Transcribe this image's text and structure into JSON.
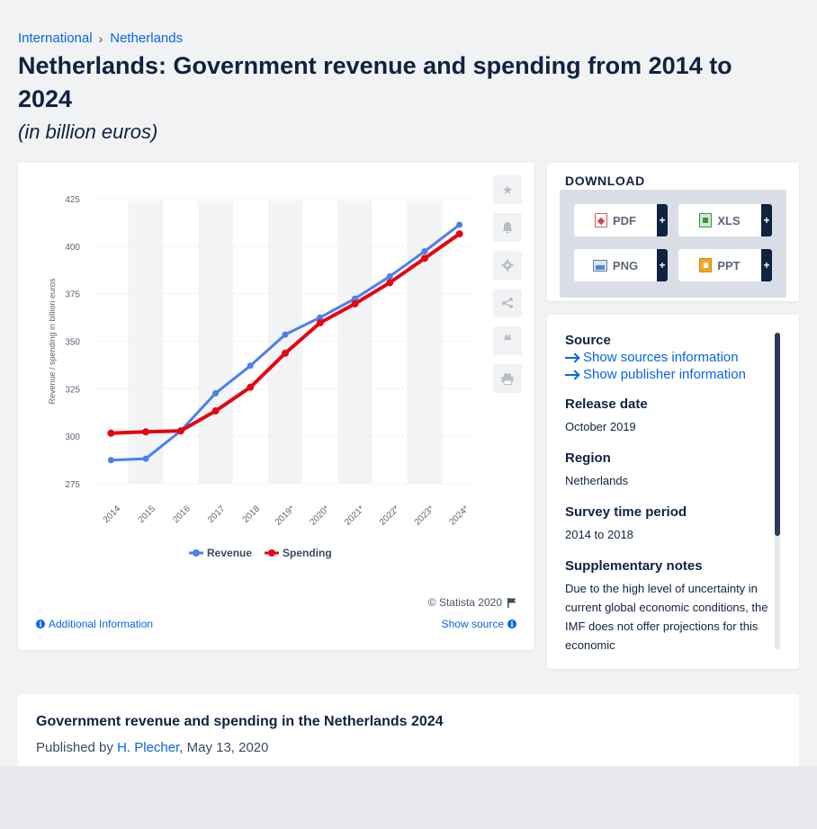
{
  "breadcrumb": {
    "items": [
      "International",
      "Netherlands"
    ]
  },
  "title": "Netherlands: Government revenue and spending from 2014 to 2024",
  "subtitle": "(in billion euros)",
  "download": {
    "heading": "DOWNLOAD",
    "buttons": [
      {
        "label": "PDF",
        "icon": "pdf-icon"
      },
      {
        "label": "XLS",
        "icon": "xls-icon"
      },
      {
        "label": "PNG",
        "icon": "png-icon"
      },
      {
        "label": "PPT",
        "icon": "ppt-icon"
      }
    ],
    "plus": "+"
  },
  "tools": [
    "star-icon",
    "bell-icon",
    "gear-icon",
    "share-icon",
    "quote-icon",
    "print-icon"
  ],
  "footer": {
    "credit": "© Statista 2020",
    "additional_info": "Additional Information",
    "show_source": "Show source"
  },
  "info": {
    "source_label": "Source",
    "show_sources": "Show sources information",
    "show_publisher": "Show publisher information",
    "release_label": "Release date",
    "release_value": "October 2019",
    "region_label": "Region",
    "region_value": "Netherlands",
    "period_label": "Survey time period",
    "period_value": "2014 to 2018",
    "notes_label": "Supplementary notes",
    "notes_value": "Due to the high level of uncertainty in current global economic conditions, the IMF does not offer projections for this economic"
  },
  "article": {
    "title": "Government revenue and spending in the Netherlands 2024",
    "published_prefix": "Published by ",
    "author": "H. Plecher",
    "date": ", May 13, 2020"
  },
  "colors": {
    "revenue": "#4a7ff2",
    "spending": "#e30613",
    "accent": "#0666e5"
  },
  "chart_data": {
    "type": "line",
    "categories": [
      "2014",
      "2015",
      "2016",
      "2017",
      "2018",
      "2019*",
      "2020*",
      "2021*",
      "2022*",
      "2023*",
      "2024*"
    ],
    "series": [
      {
        "name": "Revenue",
        "values": [
          287.4,
          288.2,
          302.8,
          322.6,
          337.1,
          353.5,
          362.5,
          372.4,
          384.1,
          397.3,
          411.3
        ]
      },
      {
        "name": "Spending",
        "values": [
          301.6,
          302.3,
          302.8,
          313.3,
          325.8,
          343.7,
          359.7,
          369.7,
          380.8,
          393.6,
          406.5
        ]
      }
    ],
    "ylabel": "Revenue / spending in billion euros",
    "xlabel": "",
    "ylim": [
      275,
      425
    ],
    "yticks": [
      275,
      300,
      325,
      350,
      375,
      400,
      425
    ],
    "grid": true,
    "legend": "bottom"
  }
}
